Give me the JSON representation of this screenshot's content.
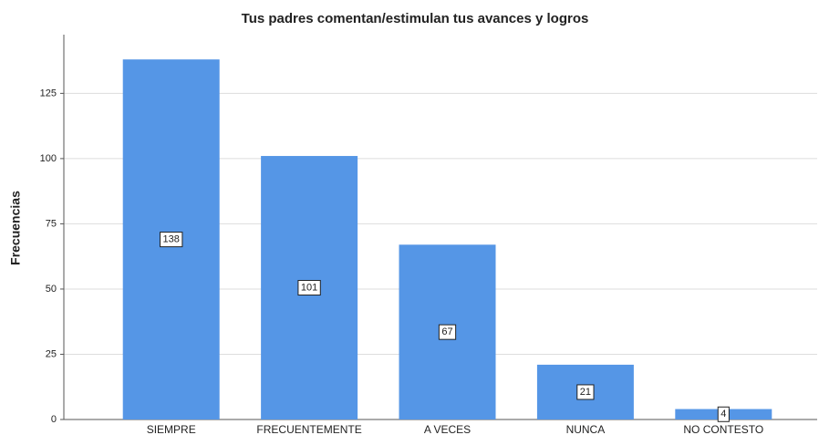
{
  "chart_data": {
    "type": "bar",
    "title": "Tus padres comentan/estimulan tus avances y logros",
    "y_label": "Frecuencias",
    "categories": [
      "SIEMPRE",
      "FRECUENTEMENTE",
      "A VECES",
      "NUNCA",
      "NO CONTESTO"
    ],
    "values": [
      138,
      101,
      67,
      21,
      4
    ],
    "color": "#5596e6",
    "ylim": [
      0,
      147.5
    ],
    "yticks": [
      0,
      25,
      50,
      75,
      100,
      125
    ],
    "grid": true
  }
}
